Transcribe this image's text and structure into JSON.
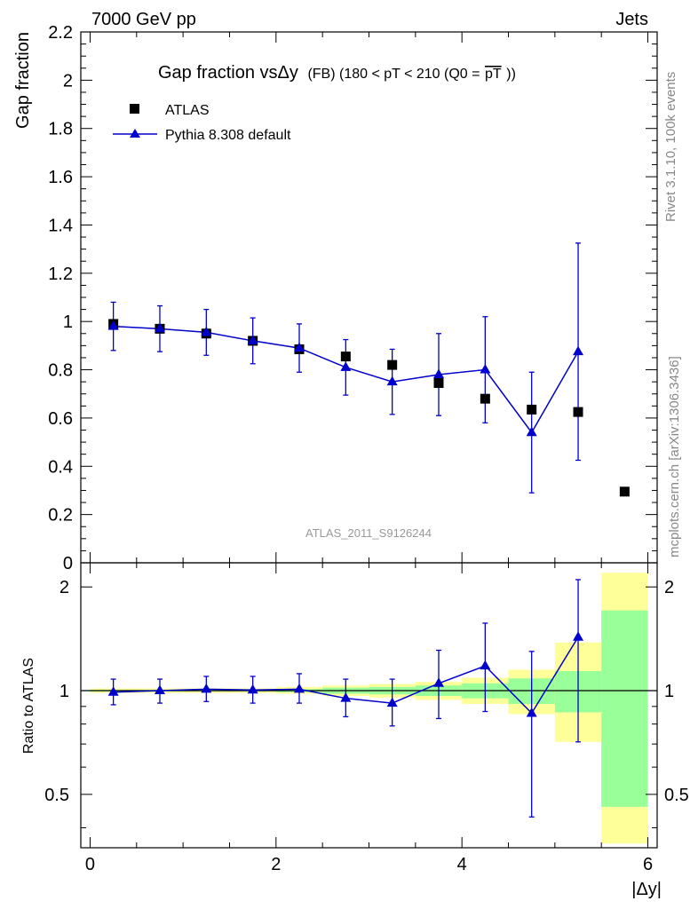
{
  "header": {
    "left": "7000 GeV pp",
    "right": "Jets"
  },
  "side_labels": {
    "rivet": "Rivet 3.1.10,  100k events",
    "mcplots": "mcplots.cern.ch [arXiv:1306.3436]"
  },
  "watermark": "ATLAS_2011_S9126244",
  "colors": {
    "mc": "#0000cc",
    "data": "#000000",
    "band_inner": "#99ff99",
    "band_outer": "#ffff99"
  },
  "chart_data": [
    {
      "type": "scatter",
      "title": "Gap fraction vsΔy (FB) (180 < pT < 210 (Q0 = pT))",
      "title_parts": {
        "main": "Gap fraction vsΔy",
        "small": "(FB) (180 < pT < 210 (Q0 =",
        "overlined": "pT",
        "close": "))"
      },
      "ylabel": "Gap fraction",
      "xlim": [
        -0.1,
        6.1
      ],
      "ylim": [
        0,
        2.2
      ],
      "yticks": [
        "0",
        "0.2",
        "0.4",
        "0.6",
        "0.8",
        "1",
        "1.2",
        "1.4",
        "1.6",
        "1.8",
        "2",
        "2.2"
      ],
      "legend": {
        "position": "top-left",
        "entries": [
          "ATLAS",
          "Pythia 8.308 default"
        ]
      },
      "series": [
        {
          "name": "ATLAS",
          "marker": "square",
          "x": [
            0.25,
            0.75,
            1.25,
            1.75,
            2.25,
            2.75,
            3.25,
            3.75,
            4.25,
            4.75,
            5.25,
            5.75
          ],
          "y": [
            0.99,
            0.97,
            0.95,
            0.92,
            0.885,
            0.855,
            0.82,
            0.745,
            0.68,
            0.635,
            0.625,
            0.295
          ]
        },
        {
          "name": "Pythia 8.308 default",
          "marker": "triangle",
          "x": [
            0.25,
            0.75,
            1.25,
            1.75,
            2.25,
            2.75,
            3.25,
            3.75,
            4.25,
            4.75,
            5.25
          ],
          "y": [
            0.98,
            0.97,
            0.955,
            0.92,
            0.89,
            0.81,
            0.75,
            0.78,
            0.8,
            0.54,
            0.875
          ],
          "yerr": [
            0.1,
            0.095,
            0.095,
            0.095,
            0.1,
            0.115,
            0.135,
            0.17,
            0.22,
            0.25,
            0.45
          ]
        }
      ]
    },
    {
      "type": "scatter",
      "ylabel": "Ratio to ATLAS",
      "xlabel": "|Δy|",
      "xlim": [
        -0.1,
        6.1
      ],
      "ylim": [
        0.35,
        2.35
      ],
      "yscale": "log",
      "yticks": [
        "0.5",
        "1",
        "2"
      ],
      "xticks": [
        "0",
        "2",
        "4",
        "6"
      ],
      "bands": {
        "x_edges": [
          0,
          0.5,
          1.0,
          1.5,
          2.0,
          2.5,
          3.0,
          3.5,
          4.0,
          4.5,
          5.0,
          5.5,
          6.0
        ],
        "inner_lo": [
          0.995,
          0.995,
          0.995,
          0.995,
          0.99,
          0.98,
          0.975,
          0.965,
          0.95,
          0.915,
          0.865,
          0.46
        ],
        "inner_hi": [
          1.005,
          1.005,
          1.005,
          1.005,
          1.01,
          1.02,
          1.025,
          1.035,
          1.05,
          1.085,
          1.14,
          1.71
        ],
        "outer_lo": [
          0.985,
          0.985,
          0.985,
          0.985,
          0.98,
          0.965,
          0.955,
          0.94,
          0.915,
          0.855,
          0.71,
          0.36
        ],
        "outer_hi": [
          1.015,
          1.015,
          1.015,
          1.015,
          1.025,
          1.035,
          1.045,
          1.06,
          1.09,
          1.15,
          1.38,
          2.2
        ]
      },
      "series": [
        {
          "name": "Pythia 8.308 default",
          "marker": "triangle",
          "x": [
            0.25,
            0.75,
            1.25,
            1.75,
            2.25,
            2.75,
            3.25,
            3.75,
            4.25,
            4.75,
            5.25
          ],
          "y": [
            0.99,
            1.0,
            1.01,
            1.005,
            1.01,
            0.95,
            0.92,
            1.05,
            1.18,
            0.86,
            1.43
          ],
          "ylo": [
            0.91,
            0.92,
            0.93,
            0.92,
            0.92,
            0.84,
            0.79,
            0.83,
            0.87,
            0.43,
            0.71
          ],
          "yhi": [
            1.08,
            1.08,
            1.1,
            1.1,
            1.12,
            1.08,
            1.08,
            1.31,
            1.57,
            1.3,
            2.1
          ]
        }
      ]
    }
  ]
}
